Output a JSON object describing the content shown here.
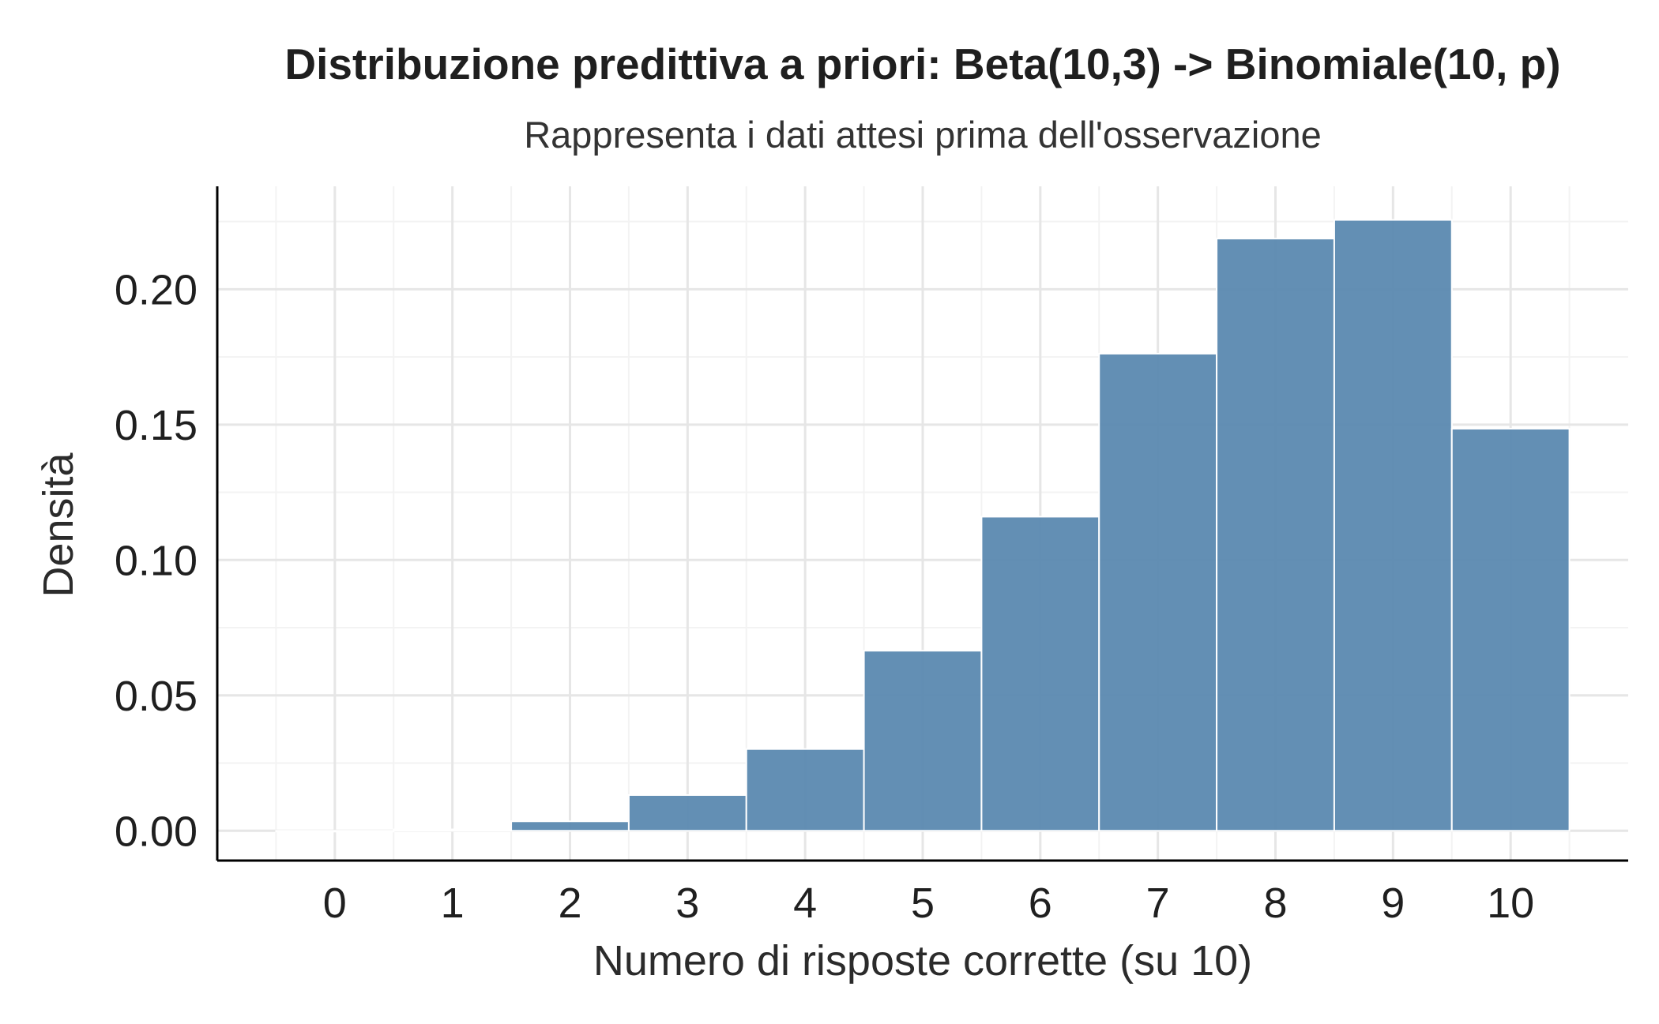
{
  "chart_data": {
    "type": "bar",
    "title": "Distribuzione predittiva a priori: Beta(10,3) -> Binomiale(10, p)",
    "subtitle": "Rappresenta i dati attesi prima dell'osservazione",
    "xlabel": "Numero di risposte corrette (su 10)",
    "ylabel": "Densità",
    "categories": [
      "0",
      "1",
      "2",
      "3",
      "4",
      "5",
      "6",
      "7",
      "8",
      "9",
      "10"
    ],
    "x": [
      0,
      1,
      2,
      3,
      4,
      5,
      6,
      7,
      8,
      9,
      10
    ],
    "values": [
      0.0,
      0.0005,
      0.0035,
      0.0132,
      0.0302,
      0.0665,
      0.116,
      0.1762,
      0.2187,
      0.2256,
      0.1485
    ],
    "xlim": [
      -1,
      11
    ],
    "ylim": [
      -0.011,
      0.238
    ],
    "y_ticks": [
      0.0,
      0.05,
      0.1,
      0.15,
      0.2
    ],
    "y_tick_labels": [
      "0.00",
      "0.05",
      "0.10",
      "0.15",
      "0.20"
    ],
    "x_ticks": [
      0,
      1,
      2,
      3,
      4,
      5,
      6,
      7,
      8,
      9,
      10
    ],
    "bar_color": "#5b89b0",
    "bar_edge_color": "#ffffff",
    "grid": true,
    "legend": "none"
  }
}
